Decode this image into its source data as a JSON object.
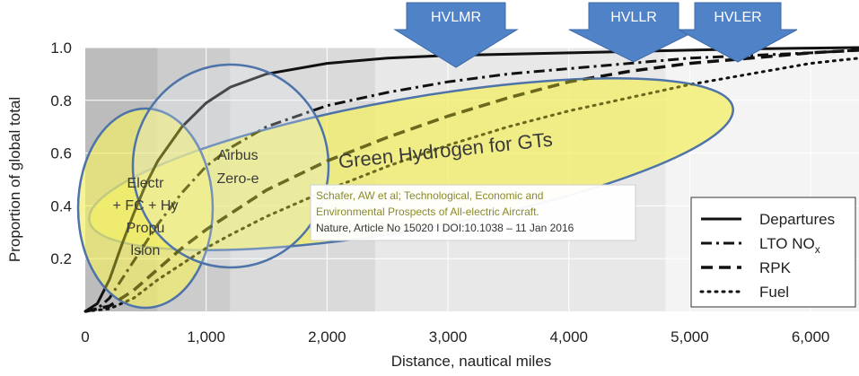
{
  "chart_data": {
    "type": "line",
    "xlabel": "Distance, nautical miles",
    "ylabel": "Proportion of global total",
    "xlim": [
      0,
      6400
    ],
    "ylim": [
      0,
      1.0
    ],
    "x_ticks": [
      0,
      1000,
      2000,
      3000,
      4000,
      5000,
      6000
    ],
    "x_tick_labels": [
      "0",
      "1,000",
      "2,000",
      "3,000",
      "4,000",
      "5,000",
      "6,000"
    ],
    "y_ticks": [
      0.2,
      0.4,
      0.6,
      0.8,
      1.0
    ],
    "y_tick_labels": [
      "0.2",
      "0.4",
      "0.6",
      "0.8",
      "1.0"
    ],
    "grid": true,
    "legend_position": "bottom-right",
    "range_bands": [
      {
        "from": 0,
        "to": 600,
        "color": "#bcbcbc"
      },
      {
        "from": 600,
        "to": 1200,
        "color": "#cccccc"
      },
      {
        "from": 1200,
        "to": 2400,
        "color": "#dadada"
      },
      {
        "from": 2400,
        "to": 4800,
        "color": "#e8e8e8"
      },
      {
        "from": 4800,
        "to": 6400,
        "color": "#f4f4f4"
      }
    ],
    "series": [
      {
        "name": "Departures",
        "style": "solid",
        "x": [
          0,
          100,
          200,
          300,
          400,
          500,
          600,
          800,
          1000,
          1200,
          1500,
          2000,
          2500,
          3000,
          3500,
          4000,
          4500,
          5000,
          5500,
          6000,
          6400
        ],
        "y": [
          0,
          0.03,
          0.12,
          0.25,
          0.37,
          0.48,
          0.57,
          0.7,
          0.79,
          0.85,
          0.9,
          0.94,
          0.96,
          0.97,
          0.975,
          0.98,
          0.985,
          0.99,
          0.995,
          0.998,
          1.0
        ]
      },
      {
        "name": "LTO NOx",
        "style": "dashdot",
        "x": [
          0,
          100,
          200,
          300,
          400,
          500,
          600,
          800,
          1000,
          1200,
          1500,
          2000,
          2500,
          3000,
          3500,
          4000,
          4500,
          5000,
          5500,
          6000,
          6400
        ],
        "y": [
          0,
          0.01,
          0.05,
          0.12,
          0.19,
          0.26,
          0.33,
          0.45,
          0.55,
          0.62,
          0.7,
          0.78,
          0.83,
          0.87,
          0.9,
          0.92,
          0.94,
          0.96,
          0.97,
          0.98,
          0.99
        ]
      },
      {
        "name": "RPK",
        "style": "dashed",
        "x": [
          0,
          200,
          300,
          400,
          500,
          600,
          800,
          1000,
          1200,
          1500,
          2000,
          2500,
          3000,
          3500,
          4000,
          4500,
          5000,
          5500,
          6000,
          6400
        ],
        "y": [
          0,
          0.02,
          0.05,
          0.08,
          0.12,
          0.16,
          0.24,
          0.31,
          0.37,
          0.46,
          0.57,
          0.66,
          0.74,
          0.81,
          0.87,
          0.91,
          0.94,
          0.96,
          0.98,
          0.99
        ]
      },
      {
        "name": "Fuel",
        "style": "dotted",
        "x": [
          0,
          200,
          400,
          600,
          800,
          1000,
          1200,
          1500,
          2000,
          2500,
          3000,
          3500,
          4000,
          4500,
          5000,
          5500,
          6000,
          6400
        ],
        "y": [
          0,
          0.01,
          0.05,
          0.12,
          0.18,
          0.24,
          0.29,
          0.36,
          0.46,
          0.55,
          0.63,
          0.7,
          0.76,
          0.81,
          0.86,
          0.9,
          0.94,
          0.96
        ]
      }
    ],
    "legend": [
      "Departures",
      "LTO NO",
      "RPK",
      "Fuel"
    ],
    "legend_subscript": "x",
    "arrows": [
      "HVLMR",
      "HVLLR",
      "HVLER"
    ],
    "ellipse_labels": {
      "electric": [
        "Electr",
        "+ FC + Hy",
        "Propu",
        "lsion"
      ],
      "airbus": [
        "Airbus",
        "Zero-e"
      ],
      "hydrogen": "Green Hydrogen for GTs"
    },
    "citation": [
      "Schafer, AW et al; Technological, Economic and",
      "Environmental Prospects of All-electric Aircraft.",
      "Nature, Article No 15020 I DOI:10.1038 – 11 Jan 2016"
    ],
    "colors": {
      "ellipse_fill": "#f2ee6a",
      "ellipse_stroke": "#4e73a8",
      "arrow_fill": "#5082c8",
      "series_line": "#5a5a14",
      "text_on_yellow": "#3a3a3a"
    }
  }
}
